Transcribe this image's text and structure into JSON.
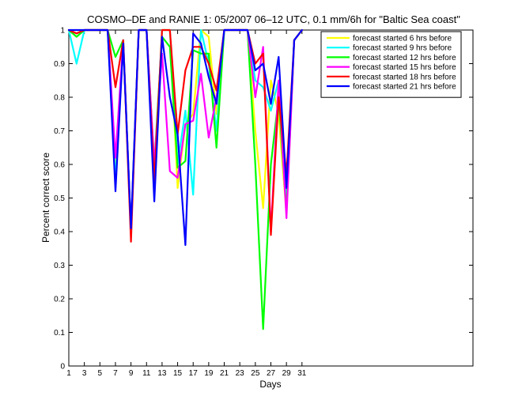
{
  "chart_data": {
    "type": "line",
    "title": "COSMO–DE and RANIE 1: 05/2007 06–12 UTC, 0.1 mm/6h for \"Baltic Sea coast\"",
    "xlabel": "Days",
    "ylabel": "Percent correct score",
    "xlim": [
      1,
      53
    ],
    "ylim": [
      0,
      1
    ],
    "x_ticks": [
      1,
      3,
      5,
      7,
      9,
      11,
      13,
      15,
      17,
      19,
      21,
      23,
      25,
      27,
      29,
      31
    ],
    "y_ticks": [
      0,
      0.1,
      0.2,
      0.3,
      0.4,
      0.5,
      0.6,
      0.7,
      0.8,
      0.9,
      1
    ],
    "y_tick_labels": [
      "0",
      "0.1",
      "0.2",
      "0.3",
      "0.4",
      "0.5",
      "0.6",
      "0.7",
      "0.8",
      "0.9",
      "1"
    ],
    "grid": false,
    "legend_position": "top-right",
    "series": [
      {
        "name": "forecast started 6 hrs before",
        "color": "#ffff00",
        "x": [
          1,
          2,
          3,
          4,
          5,
          6,
          7,
          8,
          9,
          10,
          11,
          12,
          13,
          14,
          15,
          16,
          17,
          18,
          19,
          20,
          21,
          22,
          23,
          24,
          25,
          26,
          27,
          28,
          29,
          30,
          31
        ],
        "y": [
          1,
          0.99,
          1,
          1,
          1,
          1,
          0.6,
          0.97,
          0.4,
          1,
          1,
          0.55,
          1,
          1,
          0.53,
          0.72,
          0.75,
          1,
          0.98,
          0.75,
          1,
          1,
          1,
          1,
          0.7,
          0.47,
          0.85,
          0.75,
          0.45,
          0.97,
          1
        ]
      },
      {
        "name": "forecast started 9 hrs before",
        "color": "#00ffff",
        "x": [
          1,
          2,
          3,
          4,
          5,
          6,
          7,
          8,
          9,
          10,
          11,
          12,
          13,
          14,
          15,
          16,
          17,
          18,
          19,
          20,
          21,
          22,
          23,
          24,
          25,
          26,
          27,
          28,
          29,
          30,
          31
        ],
        "y": [
          1,
          0.9,
          1,
          1,
          1,
          1,
          0.55,
          0.97,
          0.4,
          1,
          1,
          0.55,
          1,
          1,
          0.6,
          0.76,
          0.51,
          1,
          0.9,
          0.7,
          1,
          1,
          1,
          1,
          0.85,
          0.83,
          0.76,
          0.85,
          0.48,
          0.97,
          1
        ]
      },
      {
        "name": "forecast started 12 hrs before",
        "color": "#00ff00",
        "x": [
          1,
          2,
          3,
          4,
          5,
          6,
          7,
          8,
          9,
          10,
          11,
          12,
          13,
          14,
          15,
          16,
          17,
          18,
          19,
          20,
          21,
          22,
          23,
          24,
          25,
          26,
          27,
          28,
          29,
          30,
          31
        ],
        "y": [
          1,
          0.98,
          1,
          1,
          1,
          1,
          0.92,
          0.97,
          0.4,
          1,
          1,
          0.6,
          0.98,
          0.95,
          0.59,
          0.61,
          0.94,
          0.93,
          0.93,
          0.65,
          1,
          1,
          1,
          1,
          0.6,
          0.11,
          0.6,
          0.8,
          0.46,
          0.97,
          1
        ]
      },
      {
        "name": "forecast started 15 hrs before",
        "color": "#ff00ff",
        "x": [
          1,
          2,
          3,
          4,
          5,
          6,
          7,
          8,
          9,
          10,
          11,
          12,
          13,
          14,
          15,
          16,
          17,
          18,
          19,
          20,
          21,
          22,
          23,
          24,
          25,
          26,
          27,
          28,
          29,
          30,
          31
        ],
        "y": [
          1,
          0.99,
          1,
          1,
          1,
          1,
          0.62,
          0.97,
          0.4,
          1,
          1,
          0.6,
          0.93,
          0.58,
          0.56,
          0.72,
          0.73,
          0.87,
          0.68,
          0.8,
          1,
          1,
          1,
          1,
          0.8,
          0.95,
          0.4,
          0.85,
          0.44,
          0.97,
          1
        ]
      },
      {
        "name": "forecast started 18 hrs before",
        "color": "#ff0000",
        "x": [
          1,
          2,
          3,
          4,
          5,
          6,
          7,
          8,
          9,
          10,
          11,
          12,
          13,
          14,
          15,
          16,
          17,
          18,
          19,
          20,
          21,
          22,
          23,
          24,
          25,
          26,
          27,
          28,
          29,
          30,
          31
        ],
        "y": [
          1,
          0.99,
          1,
          1,
          1,
          1,
          0.83,
          0.97,
          0.37,
          1,
          1,
          0.55,
          1,
          1,
          0.69,
          0.88,
          0.95,
          0.95,
          0.9,
          0.82,
          1,
          1,
          1,
          1,
          0.9,
          0.93,
          0.39,
          0.8,
          0.57,
          0.97,
          1
        ]
      },
      {
        "name": "forecast started 21 hrs before",
        "color": "#0000ff",
        "x": [
          1,
          2,
          3,
          4,
          5,
          6,
          7,
          8,
          9,
          10,
          11,
          12,
          13,
          14,
          15,
          16,
          17,
          18,
          19,
          20,
          21,
          22,
          23,
          24,
          25,
          26,
          27,
          28,
          29,
          30,
          31
        ],
        "y": [
          1,
          1,
          1,
          1,
          1,
          1,
          0.52,
          0.96,
          0.41,
          1,
          1,
          0.49,
          0.98,
          0.8,
          0.69,
          0.36,
          0.99,
          0.96,
          0.86,
          0.78,
          1,
          1,
          1,
          1,
          0.88,
          0.9,
          0.78,
          0.92,
          0.53,
          0.97,
          1
        ]
      }
    ]
  }
}
